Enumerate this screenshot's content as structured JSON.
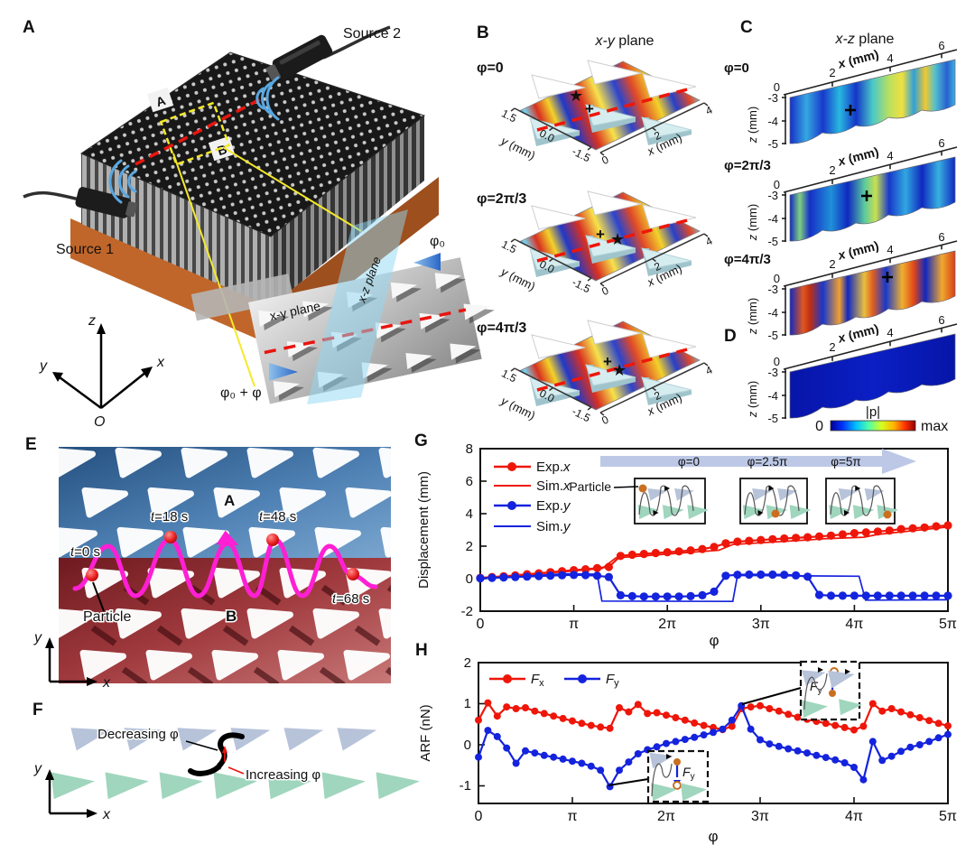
{
  "colors": {
    "accent_red": "#ee1609",
    "accent_blue": "#1423dd",
    "trajectory_magenta": "#ff1fd4",
    "triangle_blue_gray": "#b7c3d9",
    "triangle_green": "#9fd6bd",
    "photo_blue_dark": "#24507f",
    "photo_blue_light": "#7aa6cf",
    "photo_red_dark": "#6e1a20",
    "photo_red_light": "#c87878",
    "base_orange": "#c0662a",
    "particle_orange": "#c96f1f",
    "inset_arrow_blue": "#bcc8e6",
    "jet": [
      "#000090",
      "#0030ff",
      "#00c0ff",
      "#50ffa8",
      "#d8ff20",
      "#ffb000",
      "#ff3000",
      "#900000"
    ]
  },
  "figure": {
    "panels": {
      "A": {
        "label": "A",
        "source1": "Source 1",
        "source2": "Source 2",
        "region_a": "A",
        "region_b": "B",
        "xy_plane": "x-y plane",
        "xz_plane": "x-z plane",
        "phi0": "φ₀",
        "phi0_phi": "φ₀ + φ",
        "ax_x": "x",
        "ax_y": "y",
        "ax_z": "z",
        "origin": "O"
      },
      "B": {
        "label": "B",
        "title_it": "x-y",
        "title_rest": " plane",
        "phis": [
          "φ=0",
          "φ=2π/3",
          "φ=4π/3"
        ],
        "xlabel_it": "x",
        "xlabel_rest": " (mm)",
        "ylabel_it": "y",
        "ylabel_rest": " (mm)",
        "xticks": [
          "0",
          "2",
          "4"
        ],
        "yticks": [
          "1.5",
          "0.0",
          "-1.5"
        ]
      },
      "C": {
        "label": "C",
        "title_it": "x-z",
        "title_rest": " plane",
        "phis": [
          "φ=0",
          "φ=2π/3",
          "φ=4π/3"
        ],
        "xlabel_it": "x",
        "xlabel_rest": " (mm)",
        "zlabel_it": "z",
        "zlabel_rest": " (mm)",
        "xticks": [
          "0",
          "2",
          "4",
          "6"
        ],
        "zticks": [
          "-3",
          "-4",
          "-5"
        ]
      },
      "D": {
        "label": "D",
        "xticks": [
          "0",
          "2",
          "4",
          "6"
        ],
        "zticks": [
          "-3",
          "-4",
          "-5"
        ],
        "xlabel_it": "x",
        "xlabel_rest": " (mm)",
        "zlabel_it": "z",
        "zlabel_rest": " (mm)",
        "colorbar": {
          "title": "|p|",
          "min": "0",
          "max": "max"
        }
      },
      "E": {
        "label": "E",
        "times": [
          {
            "it": "t",
            "rest": "=0 s"
          },
          {
            "it": "t",
            "rest": "=18 s"
          },
          {
            "it": "t",
            "rest": "=48 s"
          },
          {
            "it": "t",
            "rest": "=68 s"
          }
        ],
        "region_a": "A",
        "region_b": "B",
        "particle": "Particle",
        "ax_x": "x",
        "ax_y": "y"
      },
      "F": {
        "label": "F",
        "decreasing": "Decreasing φ",
        "increasing": "Increasing φ",
        "ax_x": "x",
        "ax_y": "y"
      },
      "G": {
        "label": "G"
      },
      "H": {
        "label": "H"
      }
    }
  },
  "chart_data": [
    {
      "type": "line",
      "panel": "G",
      "title": "",
      "xlabel": "φ",
      "ylabel": "Displacement (mm)",
      "xlim_pi": [
        0,
        5
      ],
      "ylim": [
        -2,
        8
      ],
      "xticklabels": [
        "0",
        "π",
        "2π",
        "3π",
        "4π",
        "5π"
      ],
      "yticklabels": [
        "-2",
        "0",
        "2",
        "4",
        "6",
        "8"
      ],
      "legend": [
        {
          "prefix": "Exp.",
          "suffix": "x"
        },
        {
          "prefix": "Sim.",
          "suffix": "x"
        },
        {
          "prefix": "Exp.",
          "suffix": "y"
        },
        {
          "prefix": "Sim.",
          "suffix": "y"
        }
      ],
      "inset": {
        "phase_labels": [
          "φ=0",
          "φ=2.5π",
          "φ=5π"
        ],
        "particle": "Particle"
      },
      "series": [
        {
          "name": "Exp.x",
          "color": "#ee1609",
          "marker": true,
          "x_start_pi": 0,
          "x_step_pi": 0.125,
          "y": [
            0.05,
            0.1,
            0.15,
            0.2,
            0.27,
            0.33,
            0.4,
            0.46,
            0.52,
            0.58,
            0.65,
            0.72,
            1.4,
            1.47,
            1.52,
            1.58,
            1.63,
            1.68,
            1.74,
            1.82,
            1.95,
            2.18,
            2.28,
            2.33,
            2.38,
            2.43,
            2.47,
            2.51,
            2.55,
            2.6,
            2.65,
            2.72,
            2.8,
            2.85,
            2.9,
            2.96,
            3.05,
            3.1,
            3.15,
            3.22,
            3.28
          ]
        },
        {
          "name": "Sim.x",
          "color": "#ee1609",
          "marker": false,
          "x_pi": [
            0,
            1.3,
            1.45,
            2.55,
            2.7,
            3.55,
            3.65,
            4.1,
            4.25,
            5.0
          ],
          "y": [
            0,
            0.62,
            1.28,
            1.75,
            2.1,
            2.4,
            2.45,
            2.55,
            2.72,
            3.18
          ]
        },
        {
          "name": "Exp.y",
          "color": "#1423dd",
          "marker": true,
          "x_start_pi": 0,
          "x_step_pi": 0.125,
          "y": [
            0.02,
            0.05,
            0.08,
            0.1,
            0.13,
            0.16,
            0.19,
            0.21,
            0.23,
            0.22,
            0.18,
            0.1,
            -1.02,
            -1.08,
            -1.1,
            -1.1,
            -1.1,
            -1.1,
            -1.08,
            -1.02,
            -0.8,
            0.18,
            0.24,
            0.25,
            0.25,
            0.25,
            0.24,
            0.2,
            0.12,
            -1.0,
            -1.05,
            -1.05,
            -1.05,
            -1.05,
            -1.05,
            -1.05,
            -1.05,
            -1.05,
            -1.05,
            -1.05,
            -1.05
          ]
        },
        {
          "name": "Sim.y",
          "color": "#1423dd",
          "marker": false,
          "x_pi": [
            0,
            0.9,
            1.25,
            1.3,
            2.7,
            2.75,
            4.05,
            4.12,
            5.0
          ],
          "y": [
            0,
            0.3,
            0.27,
            -1.38,
            -1.4,
            0.2,
            0.15,
            -1.32,
            -1.3
          ]
        }
      ]
    },
    {
      "type": "line",
      "panel": "H",
      "title": "",
      "xlabel": "φ",
      "ylabel": "ARF (nN)",
      "xlim_pi": [
        0,
        5
      ],
      "ylim": [
        -1.43,
        2
      ],
      "xticklabels": [
        "0",
        "π",
        "2π",
        "3π",
        "4π",
        "5π"
      ],
      "yticklabels": [
        "-1",
        "0",
        "1",
        "2"
      ],
      "legend": [
        {
          "prefix": "F",
          "suffix": "x"
        },
        {
          "prefix": "F",
          "suffix": "y"
        }
      ],
      "inset_label": {
        "prefix": "F",
        "suffix": "y"
      },
      "series": [
        {
          "name": "Fx",
          "color": "#ee1609",
          "marker": true,
          "x_start_pi": 0,
          "x_step_pi": 0.1,
          "y": [
            0.6,
            1.02,
            0.7,
            0.92,
            0.88,
            0.9,
            0.82,
            0.76,
            0.7,
            0.64,
            0.58,
            0.52,
            0.47,
            0.43,
            0.4,
            0.9,
            0.8,
            0.98,
            0.76,
            0.78,
            0.72,
            0.66,
            0.6,
            0.53,
            0.47,
            0.42,
            0.37,
            0.45,
            0.88,
            0.92,
            0.95,
            0.88,
            0.82,
            0.74,
            0.67,
            0.62,
            0.57,
            0.52,
            0.47,
            0.42,
            0.36,
            0.45,
            1.0,
            0.82,
            0.88,
            0.8,
            0.73,
            0.66,
            0.59,
            0.52,
            0.46
          ]
        },
        {
          "name": "Fy",
          "color": "#1423dd",
          "marker": true,
          "x_start_pi": 0,
          "x_step_pi": 0.1,
          "y": [
            -0.3,
            0.35,
            0.2,
            -0.08,
            -0.45,
            -0.15,
            -0.2,
            -0.26,
            -0.3,
            -0.35,
            -0.4,
            -0.45,
            -0.52,
            -0.62,
            -1.02,
            -0.62,
            -0.42,
            -0.22,
            -0.12,
            -0.05,
            0.03,
            0.08,
            0.13,
            0.18,
            0.24,
            0.3,
            0.38,
            0.6,
            0.95,
            0.38,
            0.12,
            0.02,
            -0.04,
            -0.1,
            -0.15,
            -0.2,
            -0.26,
            -0.31,
            -0.37,
            -0.44,
            -0.55,
            -0.85,
            0.08,
            -0.38,
            -0.28,
            -0.16,
            -0.06,
            0.0,
            0.08,
            0.17,
            0.25
          ]
        }
      ]
    }
  ]
}
